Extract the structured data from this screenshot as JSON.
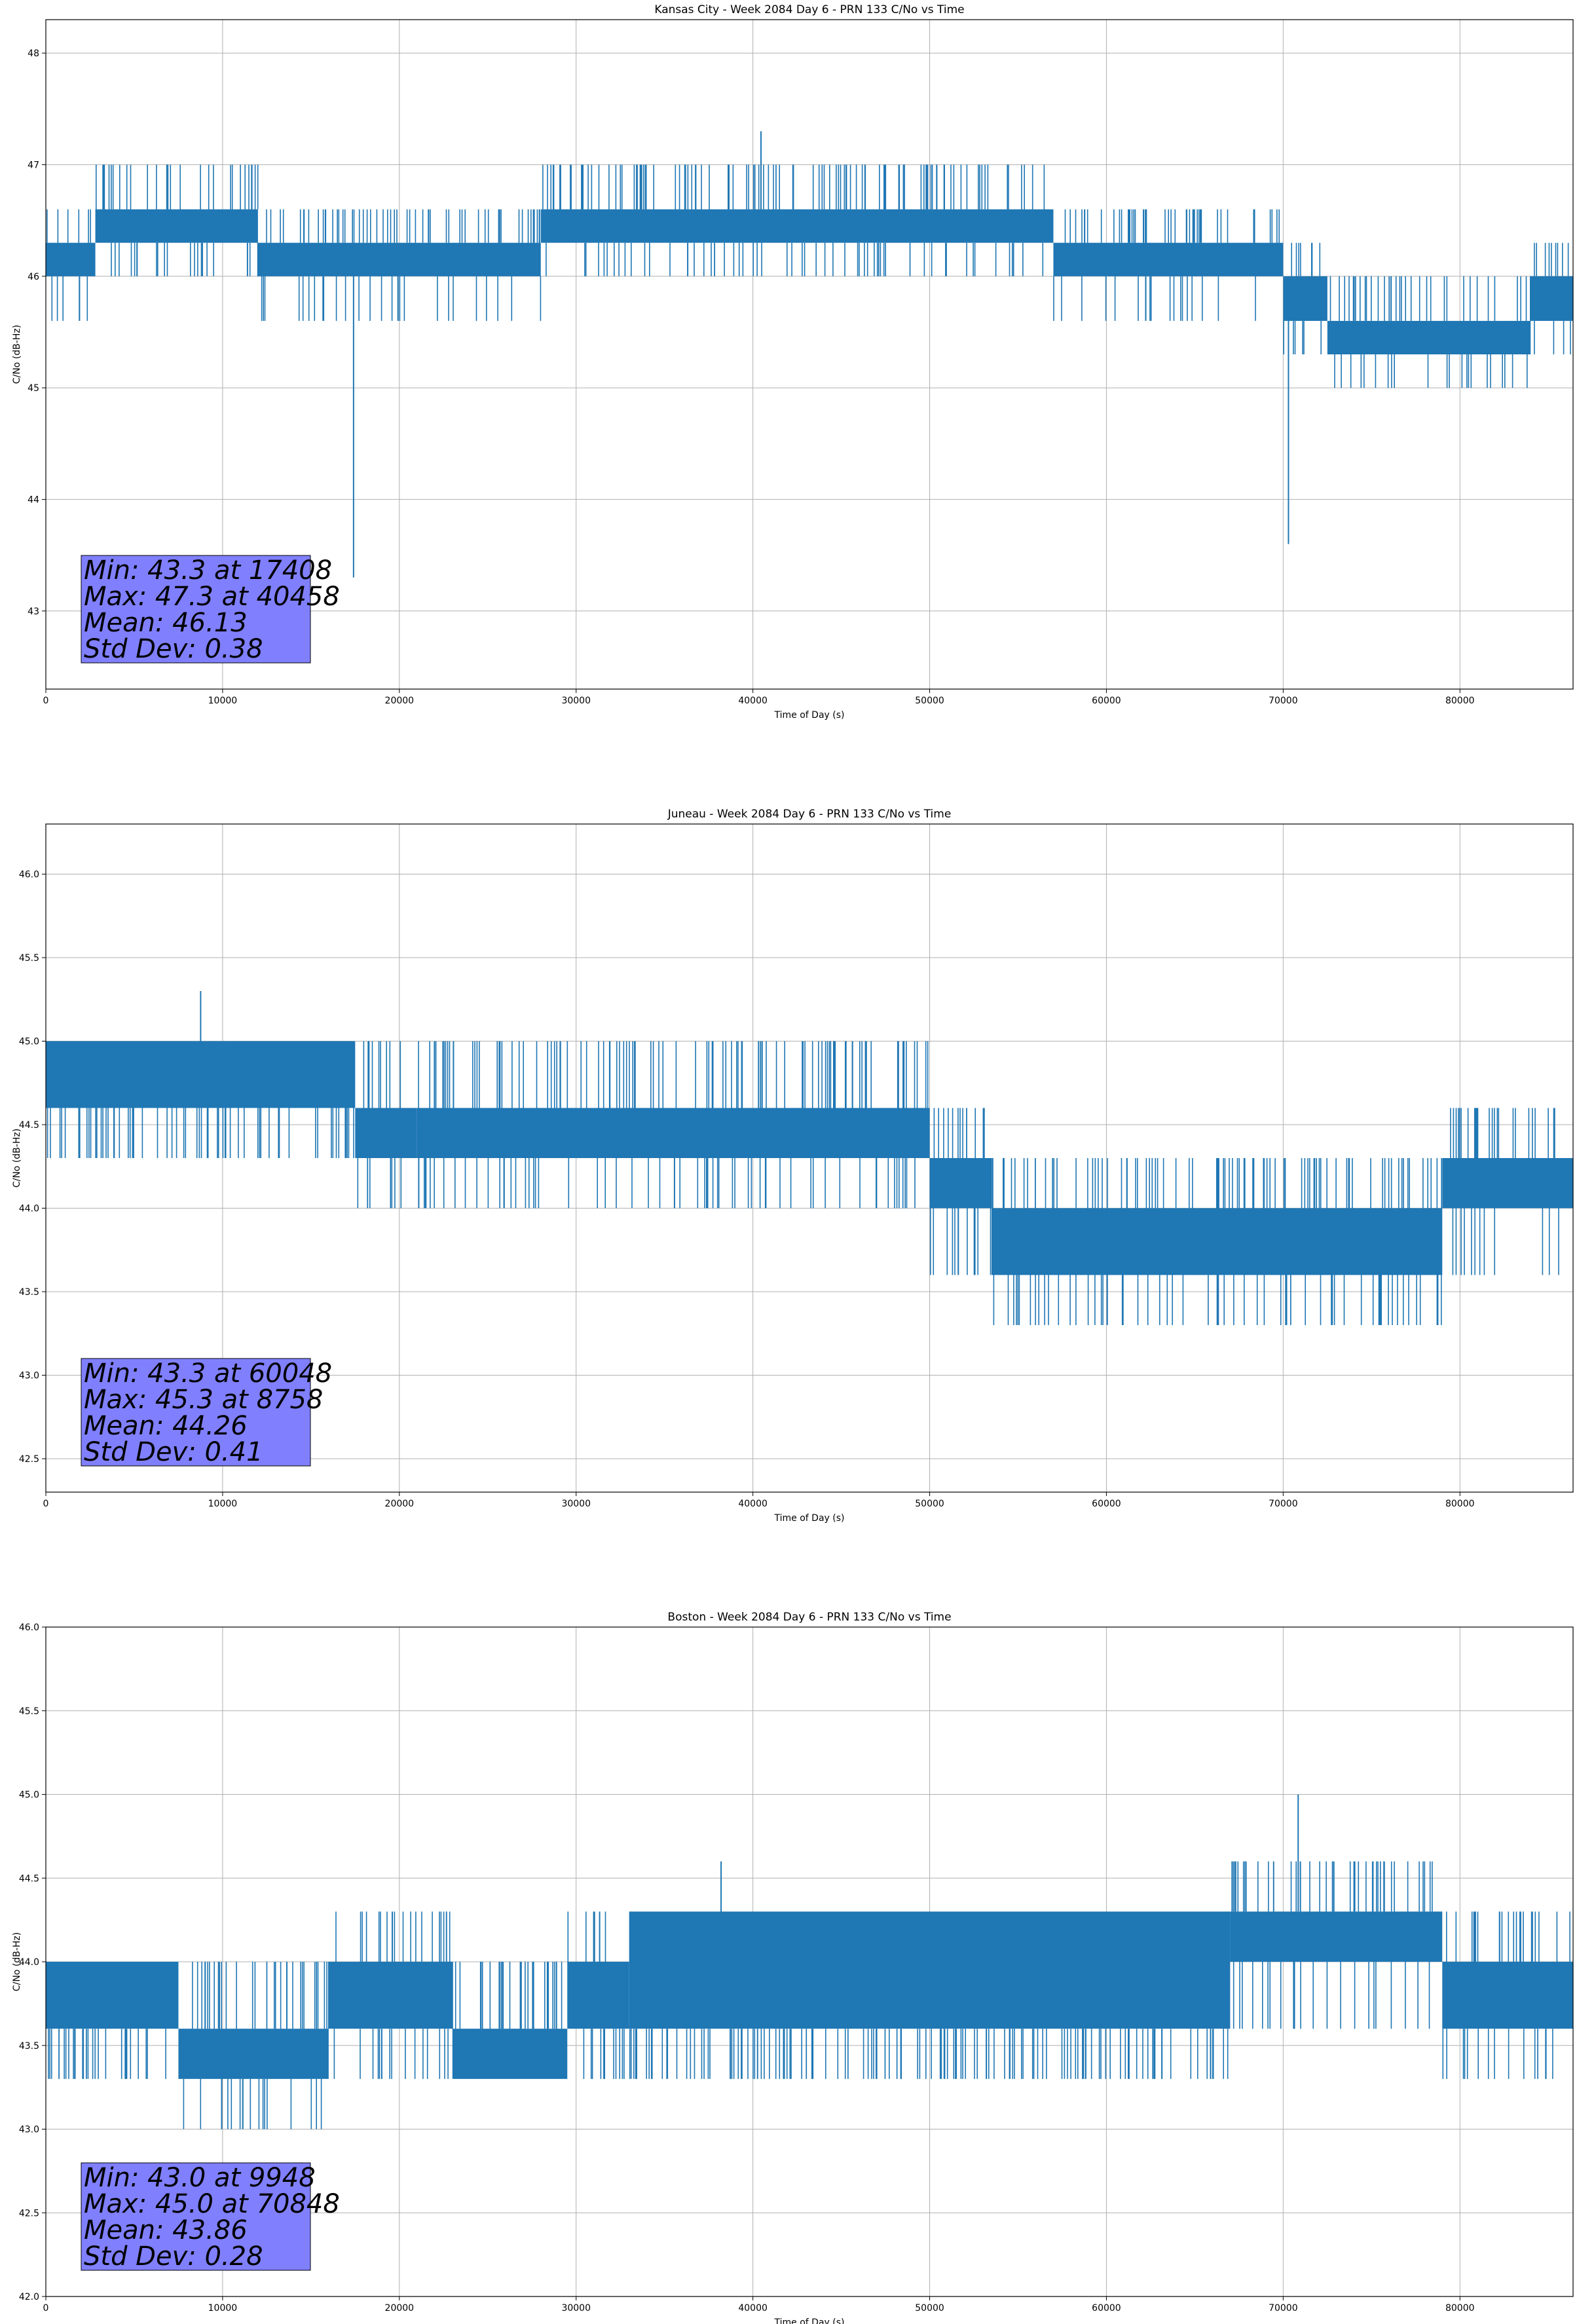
{
  "chart_data": [
    {
      "type": "line",
      "title": "Kansas City - Week 2084 Day 6 - PRN 133 C/No vs Time",
      "xlabel": "Time of Day (s)",
      "ylabel": "C/No (dB-Hz)",
      "xlim": [
        0,
        86400
      ],
      "ylim": [
        42.3,
        48.3
      ],
      "x_ticks": [
        0,
        10000,
        20000,
        30000,
        40000,
        50000,
        60000,
        70000,
        80000
      ],
      "y_ticks": [
        43,
        44,
        45,
        46,
        47,
        48
      ],
      "y_tick_decimals": 0,
      "grid": true,
      "series_color": "#1f77b4",
      "segments": [
        {
          "x": [
            0,
            2800
          ],
          "base": [
            46.0,
            46.3
          ],
          "ext": [
            45.6,
            46.6
          ]
        },
        {
          "x": [
            2800,
            12000
          ],
          "base": [
            46.3,
            46.6
          ],
          "ext": [
            46.0,
            47.0
          ]
        },
        {
          "x": [
            12000,
            28000
          ],
          "base": [
            46.0,
            46.3
          ],
          "ext": [
            45.6,
            46.6
          ]
        },
        {
          "x": [
            28000,
            57000
          ],
          "base": [
            46.3,
            46.6
          ],
          "ext": [
            46.0,
            47.0
          ]
        },
        {
          "x": [
            57000,
            70000
          ],
          "base": [
            46.0,
            46.3
          ],
          "ext": [
            45.6,
            46.6
          ]
        },
        {
          "x": [
            70000,
            72500
          ],
          "base": [
            45.6,
            46.0
          ],
          "ext": [
            45.3,
            46.3
          ]
        },
        {
          "x": [
            72500,
            84000
          ],
          "base": [
            45.3,
            45.6
          ],
          "ext": [
            45.0,
            46.0
          ]
        },
        {
          "x": [
            84000,
            86400
          ],
          "base": [
            45.6,
            46.0
          ],
          "ext": [
            45.3,
            46.3
          ]
        }
      ],
      "extra_lines": [
        {
          "x": 17408,
          "y": [
            43.3,
            46.3
          ]
        },
        {
          "x": 40458,
          "y": [
            46.3,
            47.3
          ]
        },
        {
          "x": 70300,
          "y": [
            43.6,
            46.0
          ]
        },
        {
          "x": 6900,
          "y": [
            46.3,
            47.0
          ]
        }
      ],
      "stats": {
        "min": "Min: 43.3 at 17408",
        "max": "Max: 47.3 at 40458",
        "mean": "Mean: 46.13",
        "std": "Std Dev: 0.38"
      },
      "stats_box_color": "#8080ff"
    },
    {
      "type": "line",
      "title": "Juneau - Week 2084 Day 6 - PRN 133 C/No vs Time",
      "xlabel": "Time of Day (s)",
      "ylabel": "C/No (dB-Hz)",
      "xlim": [
        0,
        86400
      ],
      "ylim": [
        42.3,
        46.3
      ],
      "x_ticks": [
        0,
        10000,
        20000,
        30000,
        40000,
        50000,
        60000,
        70000,
        80000
      ],
      "y_ticks": [
        42.5,
        43.0,
        43.5,
        44.0,
        44.5,
        45.0,
        45.5,
        46.0
      ],
      "y_tick_decimals": 1,
      "grid": true,
      "series_color": "#1f77b4",
      "segments": [
        {
          "x": [
            0,
            17500
          ],
          "base": [
            44.6,
            45.0
          ],
          "ext": [
            44.3,
            45.0
          ]
        },
        {
          "x": [
            17500,
            21000
          ],
          "base": [
            44.3,
            44.6
          ],
          "ext": [
            44.0,
            45.0
          ]
        },
        {
          "x": [
            21000,
            50000
          ],
          "base": [
            44.3,
            44.6
          ],
          "ext": [
            44.0,
            45.0
          ]
        },
        {
          "x": [
            50000,
            53500
          ],
          "base": [
            44.0,
            44.3
          ],
          "ext": [
            43.6,
            44.6
          ]
        },
        {
          "x": [
            53500,
            79000
          ],
          "base": [
            43.6,
            44.0
          ],
          "ext": [
            43.3,
            44.3
          ]
        },
        {
          "x": [
            79000,
            86400
          ],
          "base": [
            44.0,
            44.3
          ],
          "ext": [
            43.6,
            44.6
          ]
        }
      ],
      "extra_lines": [
        {
          "x": 8758,
          "y": [
            44.6,
            45.3
          ]
        },
        {
          "x": 60048,
          "y": [
            43.3,
            44.0
          ]
        }
      ],
      "stats": {
        "min": "Min: 43.3 at 60048",
        "max": "Max: 45.3 at 8758",
        "mean": "Mean: 44.26",
        "std": "Std Dev: 0.41"
      },
      "stats_box_color": "#8080ff"
    },
    {
      "type": "line",
      "title": "Boston - Week 2084 Day 6 - PRN 133 C/No vs Time",
      "xlabel": "Time of Day (s)",
      "ylabel": "C/No (dB-Hz)",
      "xlim": [
        0,
        86400
      ],
      "ylim": [
        42.0,
        46.0
      ],
      "x_ticks": [
        0,
        10000,
        20000,
        30000,
        40000,
        50000,
        60000,
        70000,
        80000
      ],
      "y_ticks": [
        42.0,
        42.5,
        43.0,
        43.5,
        44.0,
        44.5,
        45.0,
        45.5,
        46.0
      ],
      "y_tick_decimals": 1,
      "grid": true,
      "series_color": "#1f77b4",
      "segments": [
        {
          "x": [
            0,
            7500
          ],
          "base": [
            43.6,
            44.0
          ],
          "ext": [
            43.3,
            44.0
          ]
        },
        {
          "x": [
            7500,
            16000
          ],
          "base": [
            43.3,
            43.6
          ],
          "ext": [
            43.0,
            44.0
          ]
        },
        {
          "x": [
            16000,
            23000
          ],
          "base": [
            43.6,
            44.0
          ],
          "ext": [
            43.3,
            44.3
          ]
        },
        {
          "x": [
            23000,
            29500
          ],
          "base": [
            43.3,
            43.6
          ],
          "ext": [
            43.3,
            44.0
          ]
        },
        {
          "x": [
            29500,
            33000
          ],
          "base": [
            43.6,
            44.0
          ],
          "ext": [
            43.3,
            44.3
          ]
        },
        {
          "x": [
            33000,
            67000
          ],
          "base": [
            43.6,
            44.3
          ],
          "ext": [
            43.3,
            44.3
          ]
        },
        {
          "x": [
            67000,
            79000
          ],
          "base": [
            44.0,
            44.3
          ],
          "ext": [
            43.6,
            44.6
          ]
        },
        {
          "x": [
            79000,
            86400
          ],
          "base": [
            43.6,
            44.0
          ],
          "ext": [
            43.3,
            44.3
          ]
        }
      ],
      "extra_lines": [
        {
          "x": 9948,
          "y": [
            43.0,
            43.6
          ]
        },
        {
          "x": 70848,
          "y": [
            44.3,
            45.0
          ]
        },
        {
          "x": 38200,
          "y": [
            44.0,
            44.6
          ]
        },
        {
          "x": 19600,
          "y": [
            44.0,
            44.3
          ]
        }
      ],
      "stats": {
        "min": "Min: 43.0 at 9948",
        "max": "Max: 45.0 at 70848",
        "mean": "Mean: 43.86",
        "std": "Std Dev: 0.28"
      },
      "stats_box_color": "#8080ff"
    }
  ]
}
